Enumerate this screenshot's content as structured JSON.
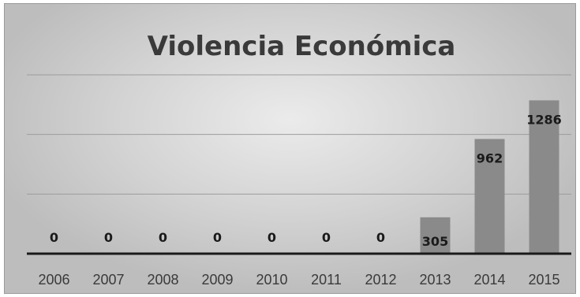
{
  "chart_data": {
    "type": "bar",
    "title": "Violencia Económica",
    "categories": [
      "2006",
      "2007",
      "2008",
      "2009",
      "2010",
      "2011",
      "2012",
      "2013",
      "2014",
      "2015"
    ],
    "values": [
      0,
      0,
      0,
      0,
      0,
      0,
      0,
      305,
      962,
      1286
    ],
    "ylim": [
      0,
      1500
    ],
    "gridlines": [
      500,
      1000,
      1500
    ],
    "grid": true,
    "legend": "none",
    "bar_color": "#8a8a8a",
    "axis_color": "#1a1a1a"
  }
}
